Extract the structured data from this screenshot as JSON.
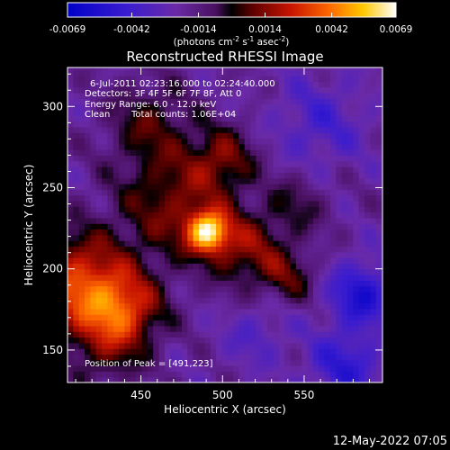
{
  "chart_data": {
    "type": "heatmap",
    "title": "Reconstructed RHESSI Image",
    "xlabel": "Heliocentric X (arcsec)",
    "ylabel": "Heliocentric Y (arcsec)",
    "xlim": [
      405,
      598
    ],
    "ylim": [
      130,
      324
    ],
    "x_ticks": [
      450,
      500,
      550
    ],
    "y_ticks": [
      150,
      200,
      250,
      300
    ],
    "colorbar": {
      "ticks": [
        "-0.0069",
        "-0.0042",
        "-0.0014",
        "0.0014",
        "0.0042",
        "0.0069"
      ],
      "range": [
        -0.0069,
        0.0069
      ],
      "units_prefix": "(photons cm",
      "units_sup1": "-2",
      "units_mid1": " s",
      "units_sup2": "-1",
      "units_mid2": " asec",
      "units_sup3": "-2",
      "units_suffix": ")",
      "colormap": "blue-purple-red-orange-yellow-white"
    },
    "annotations": {
      "time_range": "6-Jul-2011 02:23:16.000 to 02:24:40.000",
      "detectors": "Detectors: 3F 4F 5F 6F 7F 8F, Att 0",
      "energy": "Energy Range: 6.0 - 12.0 keV",
      "method": "Clean",
      "counts": "Total counts: 1.06E+04",
      "peak": "Position of Peak = [491,223]"
    },
    "peak": {
      "x": 491,
      "y": 223
    },
    "emission_features": [
      {
        "x": 491,
        "y": 223,
        "sigma": 9,
        "amplitude": 0.0069
      },
      {
        "x": 412,
        "y": 190,
        "sigma": 22,
        "amplitude": 0.0052
      },
      {
        "x": 440,
        "y": 175,
        "sigma": 16,
        "amplitude": 0.004
      },
      {
        "x": 470,
        "y": 240,
        "sigma": 24,
        "amplitude": 0.003
      },
      {
        "x": 515,
        "y": 212,
        "sigma": 16,
        "amplitude": 0.003
      },
      {
        "x": 500,
        "y": 268,
        "sigma": 14,
        "amplitude": 0.0028
      },
      {
        "x": 455,
        "y": 290,
        "sigma": 18,
        "amplitude": 0.0022
      },
      {
        "x": 540,
        "y": 195,
        "sigma": 12,
        "amplitude": 0.0022
      },
      {
        "x": 545,
        "y": 240,
        "sigma": 14,
        "amplitude": 0.0016
      },
      {
        "x": 430,
        "y": 150,
        "sigma": 16,
        "amplitude": 0.0018
      }
    ],
    "negative_features": [
      {
        "x": 585,
        "y": 185,
        "sigma": 14,
        "amplitude": -0.0035
      },
      {
        "x": 575,
        "y": 140,
        "sigma": 16,
        "amplitude": -0.0028
      },
      {
        "x": 560,
        "y": 290,
        "sigma": 20,
        "amplitude": -0.0018
      },
      {
        "x": 520,
        "y": 160,
        "sigma": 14,
        "amplitude": -0.0014
      }
    ]
  },
  "footer": {
    "date": "12-May-2022 07:05"
  }
}
